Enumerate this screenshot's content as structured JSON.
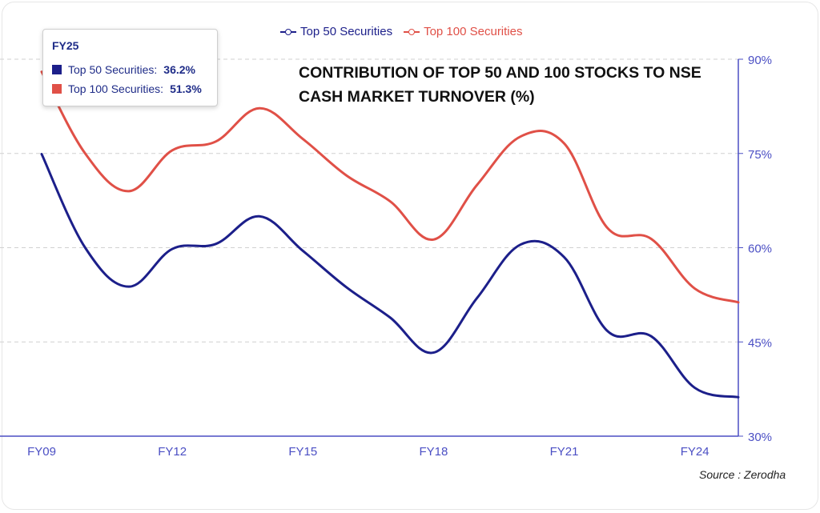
{
  "chart_data": {
    "type": "line",
    "title": "CONTRIBUTION OF TOP 50 AND 100 STOCKS TO NSE CASH MARKET TURNOVER (%)",
    "x": [
      "FY09",
      "FY10",
      "FY11",
      "FY12",
      "FY13",
      "FY14",
      "FY15",
      "FY16",
      "FY17",
      "FY18",
      "FY19",
      "FY20",
      "FY21",
      "FY22",
      "FY23",
      "FY24",
      "FY25"
    ],
    "x_tick_labels": [
      "FY09",
      "FY12",
      "FY15",
      "FY18",
      "FY21",
      "FY24"
    ],
    "y_ticks": [
      "30%",
      "45%",
      "60%",
      "75%",
      "90%"
    ],
    "ylim": [
      30,
      90
    ],
    "y_axis_position": "right",
    "grid": "horizontal dashed",
    "legend_position": "top",
    "series": [
      {
        "name": "Top 50 Securities",
        "color": "#1c1f8a",
        "values": [
          74.9,
          60.0,
          53.8,
          59.8,
          60.6,
          65.0,
          59.5,
          53.7,
          48.9,
          43.3,
          52.0,
          60.5,
          58.5,
          46.7,
          45.9,
          37.7,
          36.2
        ]
      },
      {
        "name": "Top 100 Securities",
        "color": "#e05047",
        "values": [
          88.0,
          75.0,
          69.0,
          75.5,
          76.9,
          82.2,
          77.3,
          71.5,
          67.4,
          61.3,
          70.0,
          77.7,
          76.6,
          63.1,
          61.4,
          53.5,
          51.3
        ]
      }
    ]
  },
  "tooltip": {
    "title": "FY25",
    "rows": [
      {
        "label": "Top 50 Securities:",
        "value": "36.2%",
        "color": "#1c1f8a"
      },
      {
        "label": "Top 100 Securities:",
        "value": "51.3%",
        "color": "#e05047"
      }
    ]
  },
  "source": "Source : Zerodha",
  "colors": {
    "axis": "#4b4fc4",
    "grid": "#d0d0d0",
    "tick_text": "#4b4fc4"
  }
}
